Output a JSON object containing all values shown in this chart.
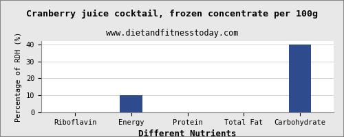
{
  "title": "Cranberry juice cocktail, frozen concentrate per 100g",
  "subtitle": "www.dietandfitnesstoday.com",
  "xlabel": "Different Nutrients",
  "ylabel": "Percentage of RDH (%)",
  "categories": [
    "Riboflavin",
    "Energy",
    "Protein",
    "Total Fat",
    "Carbohydrate"
  ],
  "values": [
    0,
    10,
    0,
    0,
    40
  ],
  "bar_color": "#2e4b8e",
  "ylim": [
    0,
    42
  ],
  "yticks": [
    0,
    10,
    20,
    30,
    40
  ],
  "background_color": "#e8e8e8",
  "plot_bg_color": "#ffffff",
  "title_fontsize": 9.5,
  "subtitle_fontsize": 8.5,
  "xlabel_fontsize": 9,
  "ylabel_fontsize": 7.5,
  "tick_fontsize": 7.5,
  "border_color": "#888888"
}
